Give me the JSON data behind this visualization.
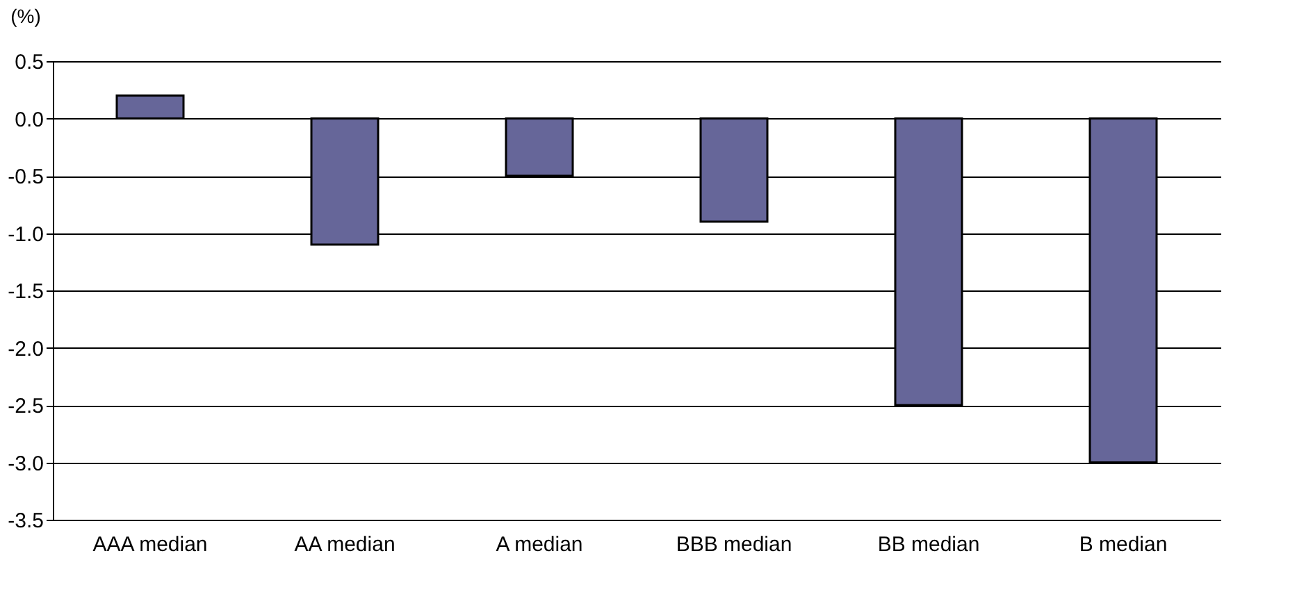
{
  "chart_data": {
    "type": "bar",
    "ylabel": "(%)",
    "categories": [
      "AAA median",
      "AA median",
      "A median",
      "BBB median",
      "BB median",
      "B median"
    ],
    "values": [
      0.2,
      -1.1,
      -0.5,
      -0.9,
      -2.5,
      -3.0
    ],
    "color": "#666699",
    "ylim": [
      -3.5,
      0.5
    ],
    "yticks": [
      {
        "value": -3.5,
        "label": "-3.5"
      },
      {
        "value": -3.0,
        "label": "-3.0"
      },
      {
        "value": -2.5,
        "label": "-2.5"
      },
      {
        "value": -2.0,
        "label": "-2.0"
      },
      {
        "value": -1.5,
        "label": "-1.5"
      },
      {
        "value": -1.0,
        "label": "-1.0"
      },
      {
        "value": -0.5,
        "label": "-0.5"
      },
      {
        "value": 0.0,
        "label": "0.0"
      },
      {
        "value": 0.5,
        "label": "0.5"
      }
    ],
    "grid": "y"
  }
}
